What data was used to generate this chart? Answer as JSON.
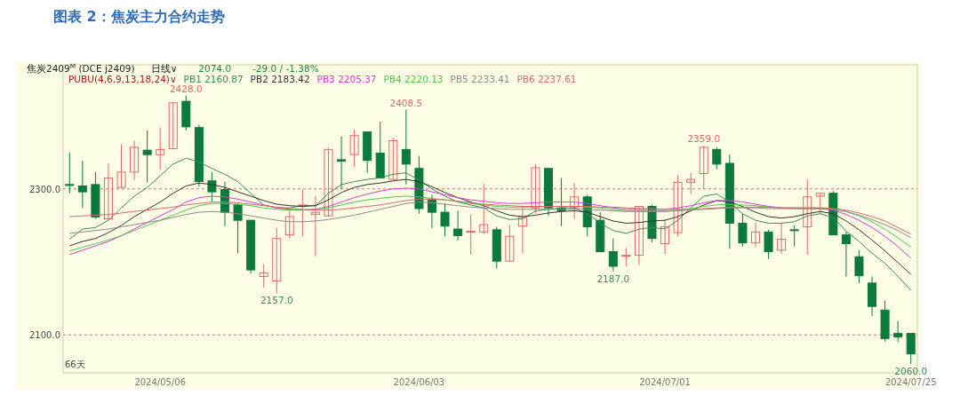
{
  "chart_data": {
    "type": "candlestick",
    "title": "图表 2：焦炭主力合约走势",
    "categories": [
      null,
      null,
      null,
      null,
      null,
      null,
      null,
      "2024/05/06",
      null,
      null,
      null,
      null,
      null,
      null,
      null,
      null,
      null,
      null,
      null,
      null,
      null,
      null,
      null,
      null,
      null,
      null,
      null,
      "2024/06/03",
      null,
      null,
      null,
      null,
      null,
      null,
      null,
      null,
      null,
      null,
      null,
      null,
      null,
      null,
      null,
      null,
      null,
      null,
      "2024/07/01",
      null,
      null,
      null,
      null,
      null,
      null,
      null,
      null,
      null,
      null,
      null,
      null,
      null,
      null,
      null,
      null,
      null,
      null,
      "2024/07/25"
    ],
    "ohlc": [
      [
        2306,
        2349.5,
        2294,
        2305
      ],
      [
        2304,
        2338.5,
        2273.6,
        2296
      ],
      [
        2306,
        2323,
        2259,
        2261.5
      ],
      [
        2259,
        2335,
        2259,
        2315
      ],
      [
        2302,
        2361,
        2302,
        2323
      ],
      [
        2323,
        2366,
        2312,
        2357
      ],
      [
        2353,
        2380,
        2309,
        2347
      ],
      [
        2347,
        2384,
        2326,
        2354
      ],
      [
        2355,
        2418,
        2355,
        2418
      ],
      [
        2420,
        2428,
        2380,
        2385
      ],
      [
        2384,
        2388,
        2303,
        2310
      ],
      [
        2311,
        2323,
        2282,
        2296
      ],
      [
        2299,
        2310,
        2249,
        2268
      ],
      [
        2278,
        2280,
        2212,
        2257
      ],
      [
        2257,
        2257,
        2184,
        2189
      ],
      [
        2180,
        2197,
        2165,
        2185
      ],
      [
        2174,
        2247,
        2157,
        2232
      ],
      [
        2237,
        2272,
        2232,
        2262
      ],
      [
        2277,
        2299,
        2235,
        2278
      ],
      [
        2265,
        2290,
        2208,
        2268
      ],
      [
        2263,
        2356,
        2263,
        2354
      ],
      [
        2340,
        2372,
        2300,
        2338
      ],
      [
        2347,
        2381,
        2330,
        2373
      ],
      [
        2378,
        2378,
        2322,
        2339
      ],
      [
        2349,
        2392,
        2315,
        2315
      ],
      [
        2313,
        2370,
        2313,
        2366
      ],
      [
        2354,
        2408.5,
        2306,
        2334
      ],
      [
        2328,
        2345,
        2266,
        2273
      ],
      [
        2285,
        2292,
        2246,
        2268
      ],
      [
        2268,
        2280,
        2235,
        2249
      ],
      [
        2245,
        2270,
        2229,
        2236
      ],
      [
        2242,
        2265,
        2210,
        2242
      ],
      [
        2241,
        2307,
        2238,
        2251
      ],
      [
        2244,
        2248,
        2191,
        2201
      ],
      [
        2201,
        2251,
        2201,
        2235
      ],
      [
        2249,
        2276,
        2212,
        2261
      ],
      [
        2274,
        2334,
        2266,
        2329
      ],
      [
        2328,
        2328,
        2263,
        2274
      ],
      [
        2274,
        2315,
        2249,
        2270
      ],
      [
        2274,
        2308,
        2259,
        2289
      ],
      [
        2289,
        2292,
        2235,
        2248
      ],
      [
        2257,
        2268,
        2214,
        2214
      ],
      [
        2214,
        2232,
        2187,
        2194
      ],
      [
        2208,
        2219,
        2194,
        2209
      ],
      [
        2209,
        2276,
        2196,
        2276
      ],
      [
        2276,
        2278,
        2227,
        2232
      ],
      [
        2225,
        2258,
        2211,
        2248
      ],
      [
        2240,
        2319,
        2235,
        2309
      ],
      [
        2309,
        2322,
        2293,
        2313
      ],
      [
        2321,
        2359,
        2300,
        2357
      ],
      [
        2354,
        2357,
        2327,
        2334
      ],
      [
        2335,
        2347,
        2218,
        2253
      ],
      [
        2253,
        2266,
        2221,
        2226
      ],
      [
        2226,
        2254,
        2220,
        2241
      ],
      [
        2241,
        2244,
        2204,
        2214
      ],
      [
        2216,
        2253,
        2211,
        2231
      ],
      [
        2244,
        2250,
        2221,
        2243
      ],
      [
        2248,
        2313,
        2210,
        2289
      ],
      [
        2290,
        2294,
        2265,
        2294
      ],
      [
        2294,
        2297,
        2237,
        2237
      ],
      [
        2237,
        2241,
        2180,
        2225
      ],
      [
        2207,
        2216,
        2171,
        2181
      ],
      [
        2171,
        2180,
        2126,
        2139
      ],
      [
        2134,
        2147,
        2091,
        2095
      ],
      [
        2102,
        2119,
        2090,
        2097
      ],
      [
        2102,
        2102,
        2060,
        2074
      ]
    ],
    "series": [
      {
        "name": "PB1 2160.87",
        "type": "line",
        "color": "#3d8a5a",
        "values": [
          2231,
          2245,
          2247,
          2257,
          2274,
          2290,
          2302,
          2318,
          2334,
          2342,
          2337,
          2328,
          2320,
          2310,
          2294,
          2278,
          2274,
          2274,
          2277,
          2277,
          2294,
          2306,
          2310,
          2313,
          2315,
          2320,
          2322,
          2312,
          2300,
          2290,
          2282,
          2278,
          2274,
          2263,
          2258,
          2259,
          2270,
          2272,
          2274,
          2274,
          2266,
          2253,
          2243,
          2239,
          2245,
          2247,
          2245,
          2257,
          2274,
          2290,
          2293,
          2282,
          2266,
          2257,
          2253,
          2253,
          2255,
          2263,
          2266,
          2261,
          2242,
          2228,
          2212,
          2198,
          2180,
          2161
        ]
      },
      {
        "name": "PB2 2183.42",
        "type": "line",
        "color": "#333333",
        "values": [
          2222,
          2228,
          2232,
          2240,
          2250,
          2262,
          2272,
          2282,
          2294,
          2304,
          2308,
          2306,
          2302,
          2296,
          2290,
          2284,
          2279,
          2277,
          2276,
          2277,
          2285,
          2295,
          2302,
          2306,
          2308,
          2311,
          2313,
          2310,
          2303,
          2295,
          2288,
          2282,
          2277,
          2270,
          2264,
          2262,
          2264,
          2267,
          2269,
          2270,
          2268,
          2262,
          2256,
          2253,
          2254,
          2256,
          2257,
          2262,
          2270,
          2278,
          2284,
          2282,
          2276,
          2268,
          2262,
          2260,
          2262,
          2266,
          2269,
          2266,
          2256,
          2244,
          2230,
          2215,
          2199,
          2183
        ]
      },
      {
        "name": "PB3 2205.37",
        "type": "line",
        "color": "#d040d0",
        "values": [
          2210,
          2216,
          2222,
          2228,
          2236,
          2245,
          2254,
          2263,
          2272,
          2282,
          2288,
          2290,
          2289,
          2286,
          2282,
          2278,
          2274,
          2272,
          2271,
          2272,
          2276,
          2282,
          2288,
          2293,
          2297,
          2300,
          2301,
          2300,
          2296,
          2292,
          2288,
          2285,
          2283,
          2281,
          2280,
          2280,
          2281,
          2282,
          2282,
          2282,
          2280,
          2277,
          2274,
          2272,
          2272,
          2272,
          2272,
          2274,
          2277,
          2281,
          2284,
          2284,
          2282,
          2279,
          2276,
          2274,
          2273,
          2273,
          2273,
          2271,
          2265,
          2257,
          2247,
          2235,
          2221,
          2205
        ]
      },
      {
        "name": "PB4 2220.13",
        "type": "line",
        "color": "#4cc94c",
        "values": [
          2215,
          2220,
          2225,
          2230,
          2236,
          2243,
          2250,
          2257,
          2264,
          2271,
          2277,
          2280,
          2280,
          2279,
          2277,
          2274,
          2272,
          2271,
          2271,
          2272,
          2274,
          2278,
          2282,
          2285,
          2287,
          2289,
          2290,
          2289,
          2287,
          2285,
          2283,
          2280,
          2278,
          2276,
          2275,
          2275,
          2275,
          2276,
          2276,
          2276,
          2275,
          2274,
          2272,
          2270,
          2270,
          2270,
          2270,
          2271,
          2273,
          2276,
          2278,
          2279,
          2278,
          2277,
          2275,
          2274,
          2274,
          2274,
          2274,
          2273,
          2269,
          2263,
          2255,
          2245,
          2233,
          2220
        ]
      },
      {
        "name": "PB5 2233.41",
        "type": "line",
        "color": "#8a8a8a",
        "values": [
          2239,
          2241,
          2243,
          2245,
          2248,
          2251,
          2254,
          2257,
          2261,
          2265,
          2268,
          2269,
          2268,
          2266,
          2263,
          2260,
          2257,
          2255,
          2255,
          2256,
          2258,
          2261,
          2264,
          2268,
          2272,
          2276,
          2280,
          2282,
          2281,
          2279,
          2277,
          2275,
          2274,
          2273,
          2272,
          2272,
          2272,
          2272,
          2272,
          2272,
          2272,
          2271,
          2270,
          2269,
          2269,
          2269,
          2269,
          2270,
          2271,
          2272,
          2273,
          2274,
          2274,
          2274,
          2273,
          2273,
          2273,
          2273,
          2273,
          2272,
          2269,
          2264,
          2258,
          2251,
          2243,
          2233
        ]
      },
      {
        "name": "PB6 2237.61",
        "type": "line",
        "color": "#d46a6a",
        "values": [
          2262,
          2263,
          2264,
          2265,
          2267,
          2269,
          2271,
          2273,
          2275,
          2278,
          2280,
          2282,
          2282,
          2281,
          2279,
          2277,
          2275,
          2273,
          2272,
          2271,
          2271,
          2272,
          2274,
          2276,
          2278,
          2281,
          2284,
          2286,
          2286,
          2285,
          2283,
          2281,
          2279,
          2278,
          2277,
          2276,
          2276,
          2276,
          2276,
          2276,
          2276,
          2275,
          2275,
          2274,
          2273,
          2273,
          2272,
          2272,
          2272,
          2273,
          2274,
          2275,
          2275,
          2275,
          2275,
          2274,
          2274,
          2274,
          2274,
          2273,
          2271,
          2267,
          2262,
          2256,
          2247,
          2238
        ]
      }
    ],
    "ylim": [
      2048,
      2470
    ],
    "yticks": [
      {
        "value": 2100,
        "label": "2100.0"
      },
      {
        "value": 2300,
        "label": "2300.0"
      }
    ],
    "grid": "y",
    "legend": "top left",
    "legend_title": "PUBU(4,6,9,13,18,24)∨",
    "annotations": [
      "焦炭2409$^{M}$ (DCE j2409)",
      "日线∨",
      "2074.0",
      "-29.0 / -1.38%",
      {
        "text": "2428.0",
        "y": 2428
      },
      {
        "text": "2408.5",
        "y": 2408.5
      },
      {
        "text": "2359.0",
        "y": 2359
      },
      {
        "text": "2157.0",
        "y": 2157
      },
      {
        "text": "2187.0",
        "y": 2187
      },
      {
        "text": "2060.0",
        "y": 2060
      },
      "66天"
    ]
  }
}
